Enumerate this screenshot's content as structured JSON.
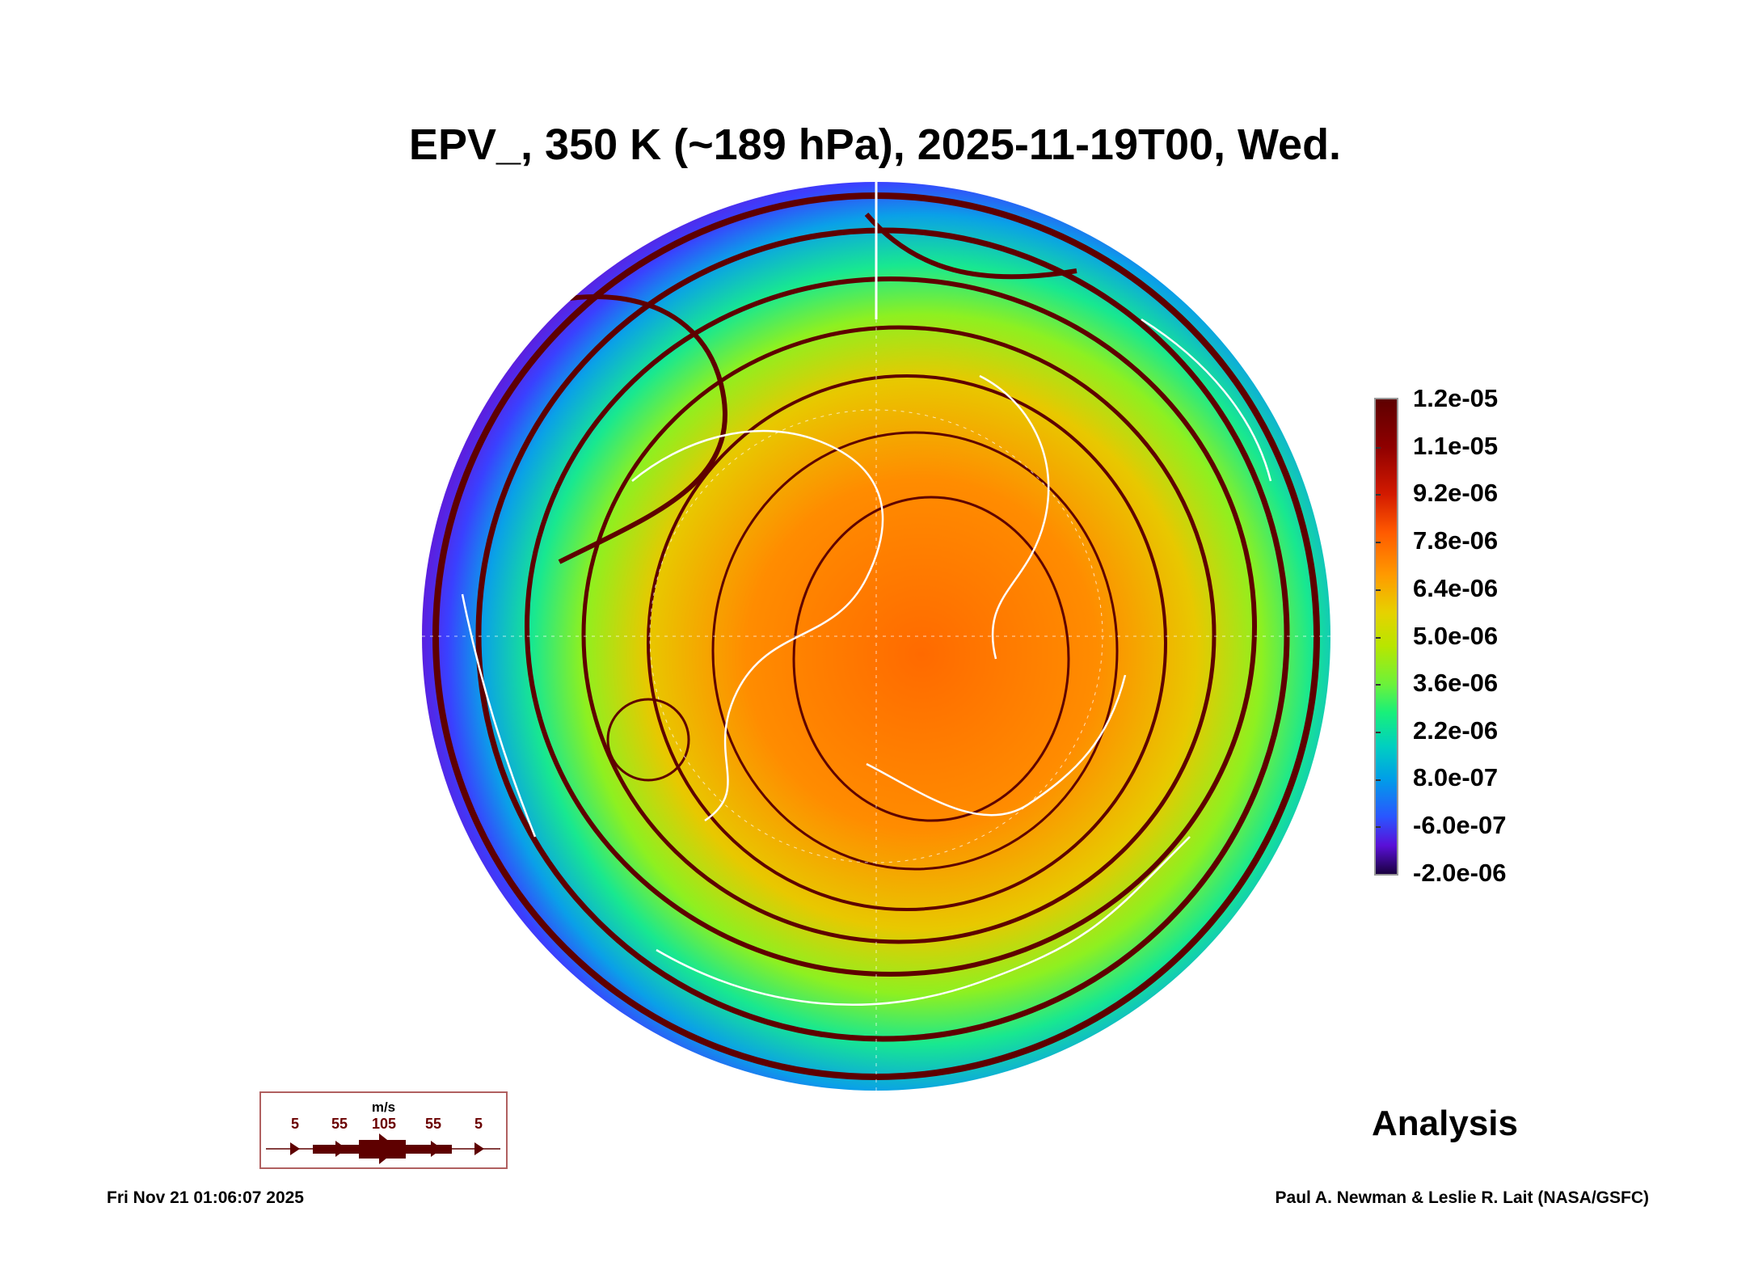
{
  "title": "EPV_, 350 K (~189 hPa), 2025-11-19T00, Wed.",
  "colorbar": {
    "labels": [
      "1.2e-05",
      "1.1e-05",
      "9.2e-06",
      "7.8e-06",
      "6.4e-06",
      "5.0e-06",
      "3.6e-06",
      "2.2e-06",
      "8.0e-07",
      "-6.0e-07",
      "-2.0e-06"
    ],
    "range": [
      -2e-06,
      1.2e-05
    ]
  },
  "wind_legend": {
    "unit": "m/s",
    "speeds": [
      "5",
      "55",
      "105",
      "55",
      "5"
    ],
    "color": "#5e0000"
  },
  "label": "Analysis",
  "footer": {
    "timestamp": "Fri Nov 21 01:06:07 2025",
    "credit": "Paul A. Newman & Leslie R. Lait (NASA/GSFC)"
  }
}
